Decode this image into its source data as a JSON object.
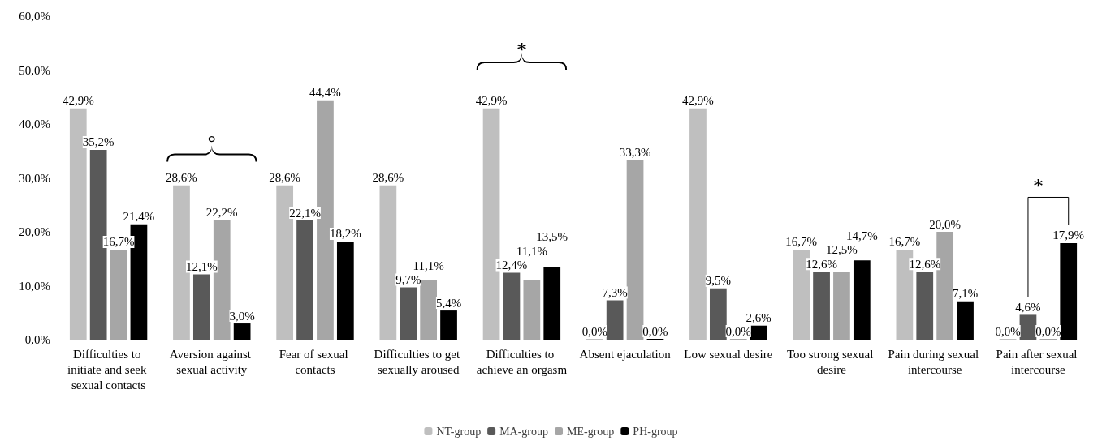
{
  "chart_data": {
    "type": "bar",
    "categories": [
      "Difficulties to initiate and seek sexual contacts",
      "Aversion against sexual activity",
      "Fear of sexual contacts",
      "Difficulties to get sexually aroused",
      "Difficulties to achieve an orgasm",
      "Absent ejaculation",
      "Low sexual desire",
      "Too strong sexual desire",
      "Pain during sexual intercourse",
      "Pain after sexual intercourse"
    ],
    "series": [
      {
        "name": "NT-group",
        "color": "#bfbfbf",
        "values": [
          42.9,
          28.6,
          28.6,
          28.6,
          42.9,
          0.0,
          42.9,
          16.7,
          16.7,
          0.0
        ],
        "value_labels": [
          "42,9%",
          "28,6%",
          "28,6%",
          "28,6%",
          "42,9%",
          "0,0%",
          "42,9%",
          "16,7%",
          "16,7%",
          "0,0%"
        ]
      },
      {
        "name": "MA-group",
        "color": "#595959",
        "values": [
          35.2,
          12.1,
          22.1,
          9.7,
          12.4,
          7.3,
          9.5,
          12.6,
          12.6,
          4.6
        ],
        "value_labels": [
          "35,2%",
          "12,1%",
          "22,1%",
          "9,7%",
          "12,4%",
          "7,3%",
          "9,5%",
          "12,6%",
          "12,6%",
          "4,6%"
        ]
      },
      {
        "name": "ME-group",
        "color": "#a6a6a6",
        "values": [
          16.7,
          22.2,
          44.4,
          11.1,
          11.1,
          33.3,
          0.0,
          12.5,
          20.0,
          0.0
        ],
        "value_labels": [
          "16,7%",
          "22,2%",
          "44,4%",
          "11,1%",
          "11,1%",
          "33,3%",
          "0,0%",
          "12,5%",
          "20,0%",
          "0,0%"
        ]
      },
      {
        "name": "PH-group",
        "color": "#000000",
        "values": [
          21.4,
          3.0,
          18.2,
          5.4,
          13.5,
          0.0,
          2.6,
          14.7,
          7.1,
          17.9
        ],
        "value_labels": [
          "21,4%",
          "3,0%",
          "18,2%",
          "5,4%",
          "13,5%",
          "0,0%",
          "2,6%",
          "14,7%",
          "7,1%",
          "17,9%"
        ]
      }
    ],
    "ylim": [
      0,
      60
    ],
    "yticks": [
      {
        "value": 0,
        "label": "0,0%"
      },
      {
        "value": 10,
        "label": "10,0%"
      },
      {
        "value": 20,
        "label": "20,0%"
      },
      {
        "value": 30,
        "label": "30,0%"
      },
      {
        "value": 40,
        "label": "40,0%"
      },
      {
        "value": 50,
        "label": "50,0%"
      },
      {
        "value": 60,
        "label": "60,0%"
      }
    ],
    "grid": false,
    "legend": "bottom",
    "annotations": [
      "°",
      "*",
      "*"
    ]
  }
}
